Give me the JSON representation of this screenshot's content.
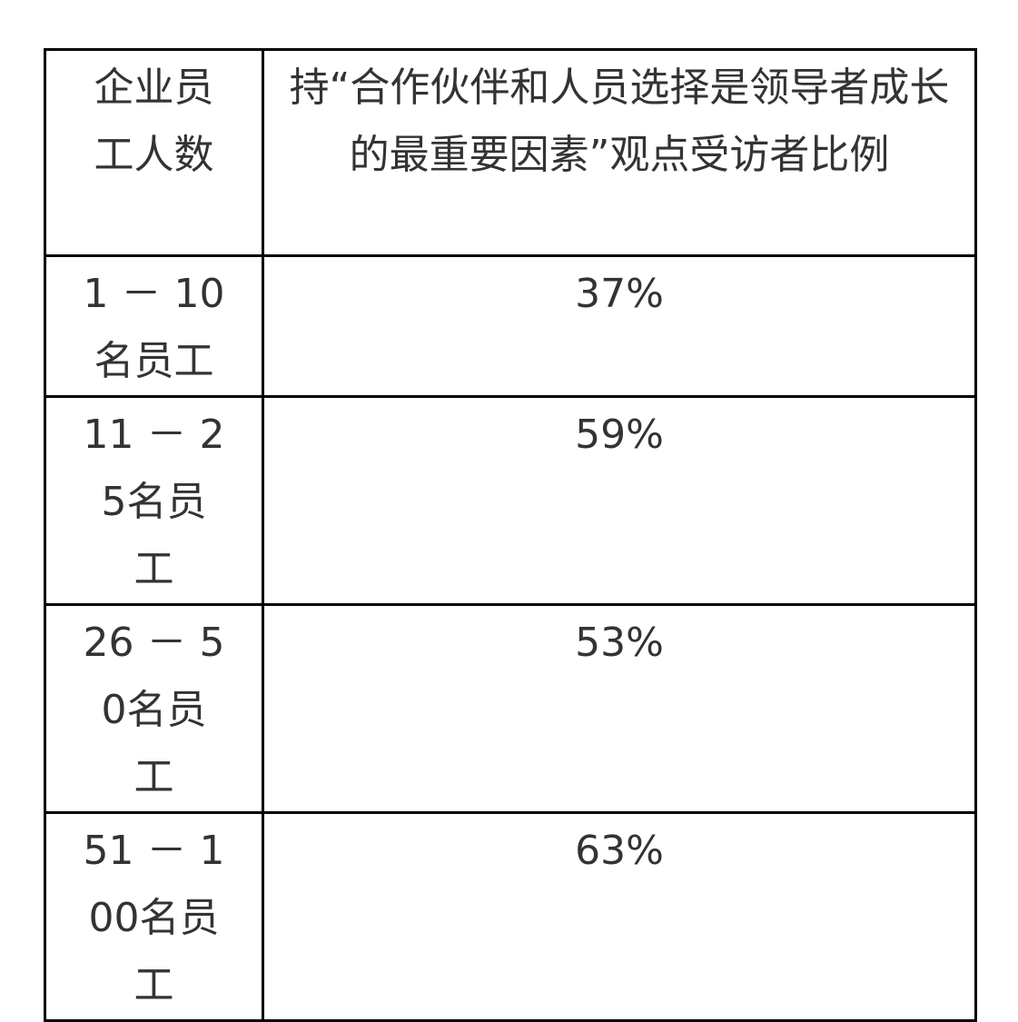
{
  "table": {
    "headers": [
      "企业员工人数",
      "持“合作伙伴和人员选择是领导者成长的最重要因素”观点受访者比例"
    ],
    "rows": [
      {
        "size": "1 － 10名员工",
        "percent": "37%"
      },
      {
        "size": "11 － 25名员工",
        "percent": "59%"
      },
      {
        "size": "26 － 50名员工",
        "percent": "53%"
      },
      {
        "size": "51 － 100名员工",
        "percent": "63%"
      }
    ]
  }
}
